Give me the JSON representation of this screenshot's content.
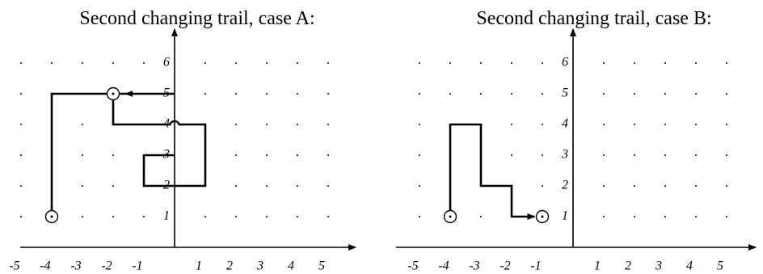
{
  "panels": [
    {
      "title": "Second changing trail, case A:",
      "x_labels": [
        "-5",
        "-4",
        "-3",
        "-2",
        "-1",
        "1",
        "2",
        "3",
        "4",
        "5"
      ],
      "y_labels": [
        "1",
        "2",
        "3",
        "4",
        "5",
        "6"
      ]
    },
    {
      "title": "Second changing trail, case B:",
      "x_labels": [
        "-5",
        "-4",
        "-3",
        "-2",
        "-1",
        "1",
        "2",
        "3",
        "4",
        "5"
      ],
      "y_labels": [
        "1",
        "2",
        "3",
        "4",
        "5",
        "6"
      ]
    }
  ]
}
